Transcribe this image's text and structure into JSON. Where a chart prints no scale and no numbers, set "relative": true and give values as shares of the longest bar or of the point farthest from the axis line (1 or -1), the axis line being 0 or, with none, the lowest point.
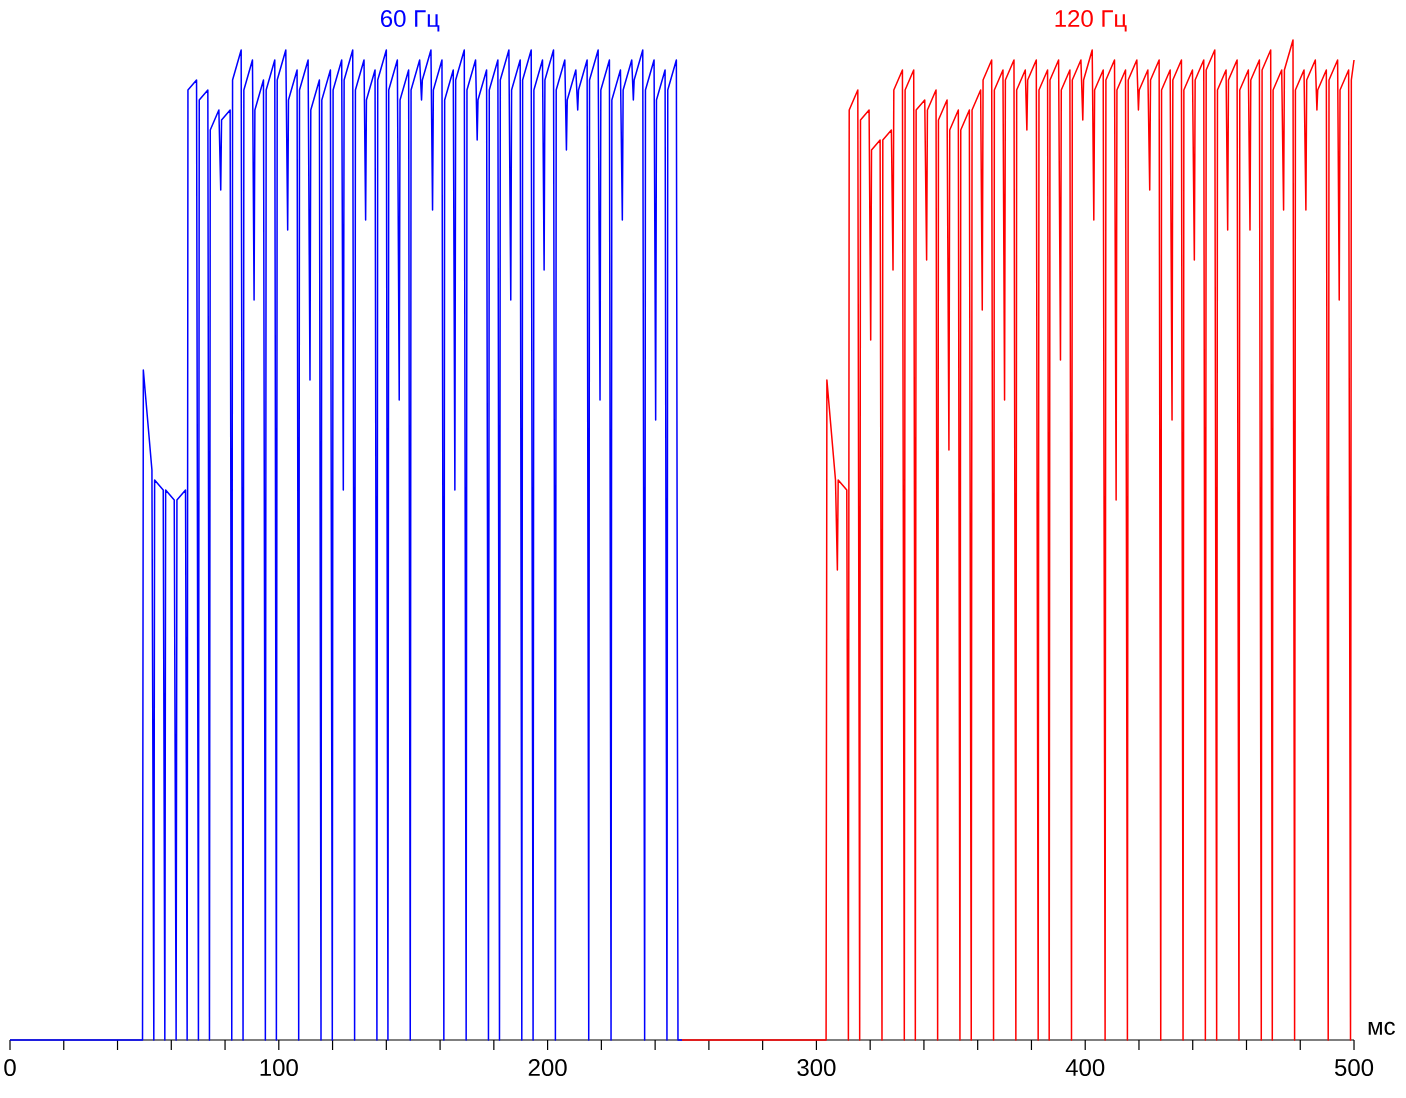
{
  "chart_data": {
    "type": "line",
    "relative": true,
    "xlabel": "мс",
    "xlim": [
      0,
      500
    ],
    "xticks": [
      0,
      {
        "value": 20,
        "label": null
      },
      {
        "value": 40,
        "label": null
      },
      {
        "value": 60,
        "label": null
      },
      {
        "value": 80,
        "label": null
      },
      100,
      {
        "value": 120,
        "label": null
      },
      {
        "value": 140,
        "label": null
      },
      {
        "value": 160,
        "label": null
      },
      {
        "value": 180,
        "label": null
      },
      200,
      {
        "value": 220,
        "label": null
      },
      {
        "value": 240,
        "label": null
      },
      {
        "value": 260,
        "label": null
      },
      {
        "value": 280,
        "label": null
      },
      300,
      {
        "value": 320,
        "label": null
      },
      {
        "value": 340,
        "label": null
      },
      {
        "value": 360,
        "label": null
      },
      {
        "value": 380,
        "label": null
      },
      400,
      {
        "value": 420,
        "label": null
      },
      {
        "value": 440,
        "label": null
      },
      {
        "value": 460,
        "label": null
      },
      {
        "value": 480,
        "label": null
      },
      500
    ],
    "series": [
      {
        "name": "60 Гц",
        "color": "#0000ff",
        "x": [
          0,
          49.3,
          49.6,
          52.8,
          53.5,
          53.8,
          57.0,
          57.6,
          57.9,
          61.1,
          61.8,
          62.1,
          65.3,
          65.9,
          66.2,
          69.4,
          70.1,
          70.4,
          73.6,
          74.2,
          74.5,
          77.7,
          78.4,
          78.7,
          81.9,
          82.5,
          82.8,
          86.0,
          86.7,
          87.0,
          90.2,
          90.8,
          91.1,
          94.3,
          95.0,
          95.3,
          98.5,
          99.1,
          99.4,
          102.6,
          103.3,
          103.6,
          106.8,
          107.4,
          107.7,
          110.9,
          111.6,
          111.9,
          115.1,
          115.7,
          116.0,
          119.2,
          119.9,
          120.2,
          123.4,
          124.0,
          124.3,
          127.5,
          128.2,
          128.5,
          131.7,
          132.3,
          132.6,
          135.8,
          136.5,
          136.8,
          140.0,
          140.6,
          140.9,
          144.1,
          144.8,
          145.1,
          148.3,
          148.9,
          149.2,
          152.4,
          153.1,
          153.4,
          156.6,
          157.2,
          157.5,
          160.7,
          161.4,
          161.7,
          164.9,
          165.5,
          165.8,
          169.0,
          169.7,
          170.0,
          173.2,
          173.8,
          174.1,
          177.3,
          178.0,
          178.3,
          181.5,
          182.1,
          182.4,
          185.6,
          186.3,
          186.6,
          189.8,
          190.4,
          190.7,
          193.9,
          194.6,
          194.9,
          198.1,
          198.7,
          199.0,
          202.2,
          202.9,
          203.2,
          206.4,
          207.0,
          207.3,
          210.5,
          211.2,
          211.5,
          214.7,
          215.3,
          215.6,
          218.8,
          219.5,
          219.8,
          223.0,
          223.6,
          223.9,
          227.1,
          227.8,
          228.1,
          231.3,
          231.9,
          232.2,
          235.4,
          236.1,
          236.4,
          239.6,
          240.2,
          240.5,
          243.7,
          244.4,
          244.7,
          247.9,
          248.5,
          250
        ],
        "values": [
          0,
          0,
          0.67,
          0.57,
          0,
          0.56,
          0.55,
          0,
          0.55,
          0.54,
          0,
          0.54,
          0.55,
          0,
          0.95,
          0.96,
          0,
          0.94,
          0.95,
          0,
          0.91,
          0.93,
          0.85,
          0.92,
          0.93,
          0,
          0.96,
          0.99,
          0,
          0.95,
          0.98,
          0.74,
          0.93,
          0.96,
          0,
          0.95,
          0.98,
          0,
          0.96,
          0.99,
          0.81,
          0.94,
          0.97,
          0,
          0.95,
          0.98,
          0.66,
          0.93,
          0.96,
          0,
          0.94,
          0.97,
          0,
          0.95,
          0.98,
          0.55,
          0.96,
          0.99,
          0,
          0.95,
          0.98,
          0.82,
          0.94,
          0.97,
          0,
          0.96,
          0.99,
          0,
          0.95,
          0.98,
          0.64,
          0.94,
          0.97,
          0,
          0.95,
          0.98,
          0.94,
          0.96,
          0.99,
          0.83,
          0.95,
          0.98,
          0,
          0.94,
          0.97,
          0.55,
          0.96,
          0.99,
          0,
          0.95,
          0.98,
          0.9,
          0.94,
          0.97,
          0,
          0.95,
          0.98,
          0,
          0.96,
          0.99,
          0.74,
          0.95,
          0.98,
          0,
          0.96,
          0.99,
          0,
          0.95,
          0.98,
          0.77,
          0.96,
          0.99,
          0,
          0.95,
          0.98,
          0.89,
          0.94,
          0.97,
          0.93,
          0.95,
          0.98,
          0,
          0.96,
          0.99,
          0.64,
          0.95,
          0.98,
          0,
          0.94,
          0.97,
          0.82,
          0.95,
          0.98,
          0.94,
          0.96,
          0.99,
          0,
          0.95,
          0.98,
          0.62,
          0.94,
          0.97,
          0,
          0.95,
          0.98,
          0,
          0
        ]
      },
      {
        "name": "120 Гц",
        "color": "#ff0000",
        "x": [
          250,
          303.6,
          303.9,
          307.1,
          307.8,
          308.1,
          311.3,
          311.9,
          312.2,
          315.4,
          316.1,
          316.4,
          319.6,
          320.2,
          320.5,
          323.7,
          324.4,
          324.7,
          327.9,
          328.5,
          328.8,
          332.0,
          332.7,
          333.0,
          336.2,
          336.8,
          337.1,
          340.3,
          341.0,
          341.3,
          344.5,
          345.1,
          345.4,
          348.6,
          349.3,
          349.6,
          352.8,
          353.4,
          353.7,
          356.9,
          357.6,
          357.9,
          361.1,
          361.7,
          362.0,
          365.2,
          365.9,
          366.2,
          369.4,
          370.0,
          370.3,
          373.5,
          374.2,
          374.5,
          377.7,
          378.3,
          378.6,
          381.8,
          382.5,
          382.8,
          386.0,
          386.6,
          386.9,
          390.1,
          390.8,
          391.1,
          394.3,
          394.9,
          395.2,
          398.4,
          399.1,
          399.4,
          402.6,
          403.2,
          403.5,
          406.7,
          407.4,
          407.7,
          410.9,
          411.5,
          411.8,
          415.0,
          415.7,
          416.0,
          419.2,
          419.8,
          420.1,
          423.3,
          424.0,
          424.3,
          427.5,
          428.1,
          428.4,
          431.6,
          432.3,
          432.6,
          435.8,
          436.4,
          436.7,
          439.9,
          440.6,
          440.9,
          444.1,
          444.7,
          445.0,
          448.2,
          448.9,
          449.2,
          452.4,
          453.0,
          453.3,
          456.5,
          457.2,
          457.5,
          460.7,
          461.3,
          461.6,
          464.8,
          465.5,
          465.8,
          469.0,
          469.6,
          469.9,
          473.1,
          473.8,
          474.1,
          477.3,
          477.9,
          478.2,
          481.4,
          482.1,
          482.4,
          485.6,
          486.2,
          486.5,
          489.7,
          490.4,
          490.7,
          493.9,
          494.5,
          494.8,
          498.0,
          498.7,
          499.0,
          500
        ],
        "values": [
          0,
          0,
          0.66,
          0.56,
          0.47,
          0.56,
          0.55,
          0,
          0.93,
          0.95,
          0,
          0.92,
          0.93,
          0.7,
          0.89,
          0.9,
          0,
          0.9,
          0.91,
          0.77,
          0.95,
          0.97,
          0,
          0.95,
          0.97,
          0,
          0.93,
          0.94,
          0.78,
          0.93,
          0.95,
          0,
          0.92,
          0.94,
          0.59,
          0.91,
          0.93,
          0,
          0.91,
          0.93,
          0,
          0.93,
          0.95,
          0.73,
          0.96,
          0.98,
          0,
          0.95,
          0.97,
          0.64,
          0.96,
          0.98,
          0,
          0.95,
          0.97,
          0.91,
          0.96,
          0.98,
          0,
          0.95,
          0.97,
          0,
          0.96,
          0.98,
          0.68,
          0.95,
          0.97,
          0,
          0.96,
          0.98,
          0.92,
          0.96,
          0.99,
          0.82,
          0.95,
          0.97,
          0,
          0.96,
          0.98,
          0.54,
          0.95,
          0.97,
          0,
          0.96,
          0.98,
          0.93,
          0.95,
          0.97,
          0.85,
          0.96,
          0.98,
          0,
          0.95,
          0.97,
          0.62,
          0.96,
          0.98,
          0,
          0.95,
          0.97,
          0.78,
          0.96,
          0.98,
          0,
          0.97,
          0.99,
          0,
          0.95,
          0.97,
          0.81,
          0.96,
          0.98,
          0,
          0.95,
          0.97,
          0.81,
          0.96,
          0.98,
          0,
          0.97,
          0.99,
          0,
          0.95,
          0.97,
          0.83,
          0.97,
          1.0,
          0,
          0.95,
          0.97,
          0.83,
          0.96,
          0.98,
          0.93,
          0.95,
          0.97,
          0,
          0.96,
          0.98,
          0.74,
          0.95,
          0.97,
          0,
          0.96,
          0.98
        ]
      }
    ]
  }
}
